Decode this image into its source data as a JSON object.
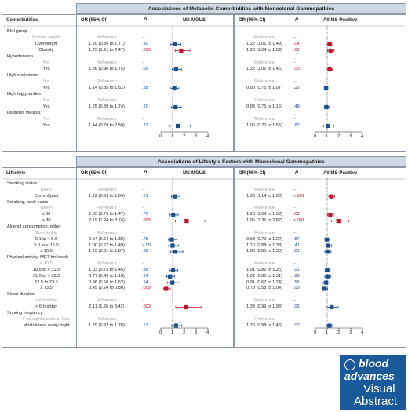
{
  "panel1": {
    "title": "Associations of Metabolic Comorbidities with Monoclonal Gammopathies",
    "first_col": "Comorbidities",
    "or_label": "OR (95% CI)",
    "p_label": "P",
    "plot_left": "MS-MGUS",
    "plot_right": "All MS-Positive",
    "axis_ticks": [
      "0",
      "1",
      "2",
      "3",
      "4"
    ],
    "rows": [
      {
        "label": "BMI group",
        "type": "cat",
        "or_l": "",
        "p_l": "",
        "or_r": "",
        "p_r": ""
      },
      {
        "label": "Normal weight",
        "type": "ref",
        "or_l": "Reference",
        "p_l": "--",
        "or_r": "Reference",
        "p_r": "--"
      },
      {
        "label": "Overweight",
        "type": "lvl",
        "or_l": "1.20 (0.85 to 1.71)",
        "p_l": ".30",
        "pc_l": "b",
        "or_r": "1.22 (1.01 to 1.49)",
        "p_r": ".04",
        "pc_r": "r"
      },
      {
        "label": "Obesity",
        "type": "lvl",
        "or_l": "1.73 (1.21 to 2.47)",
        "p_l": ".003",
        "pc_l": "r",
        "or_r": "1.28 (1.04 to 1.59)",
        "p_r": ".02",
        "pc_r": "r"
      },
      {
        "label": "Hypertension",
        "type": "cat",
        "or_l": "",
        "p_l": "",
        "or_r": "",
        "p_r": ""
      },
      {
        "label": "No",
        "type": "ref",
        "or_l": "Reference",
        "p_l": "--",
        "or_r": "Reference",
        "p_r": "--"
      },
      {
        "label": "Yes",
        "type": "lvl",
        "or_l": "1.30 (0.96 to 1.75)",
        "p_l": ".09",
        "pc_l": "b",
        "or_r": "1.22 (1.02 to 1.46)",
        "p_r": ".03",
        "pc_r": "r"
      },
      {
        "label": "High cholesterol",
        "type": "cat",
        "or_l": "",
        "p_l": "",
        "or_r": "",
        "p_r": ""
      },
      {
        "label": "No",
        "type": "ref",
        "or_l": "Reference",
        "p_l": "--",
        "or_r": "Reference",
        "p_r": "--"
      },
      {
        "label": "Yes",
        "type": "lvl",
        "or_l": "1.14 (0.85 to 1.52)",
        "p_l": ".38",
        "pc_l": "b",
        "or_r": "0.90 (0.75 to 1.07)",
        "p_r": ".22",
        "pc_r": "b"
      },
      {
        "label": "High triglycerides",
        "type": "cat",
        "or_l": "",
        "p_l": "",
        "or_r": "",
        "p_r": ""
      },
      {
        "label": "No",
        "type": "ref",
        "or_l": "Reference",
        "p_l": "--",
        "or_r": "Reference",
        "p_r": "--"
      },
      {
        "label": "Yes",
        "type": "lvl",
        "or_l": "1.25 (0.89 to 1.74)",
        "p_l": ".20",
        "pc_l": "b",
        "or_r": "0.93 (0.75 to 1.15)",
        "p_r": ".48",
        "pc_r": "b"
      },
      {
        "label": "Diabetes mellitus",
        "type": "cat",
        "or_l": "",
        "p_l": "",
        "or_r": "",
        "p_r": ""
      },
      {
        "label": "No",
        "type": "ref",
        "or_l": "Reference",
        "p_l": "--",
        "or_r": "Reference",
        "p_r": "--"
      },
      {
        "label": "Yes",
        "type": "lvl",
        "or_l": "1.44 (0.79 to 2.50)",
        "p_l": ".22",
        "pc_l": "b",
        "or_r": "1.05 (0.70 to 1.55)",
        "p_r": ".82",
        "pc_r": "b"
      }
    ]
  },
  "panel2": {
    "title": "Associations of Lifestyle Factors with Monoclonal Gammopathies",
    "first_col": "Lifestyle",
    "or_label": "OR (95% CI)",
    "p_label": "P",
    "plot_left": "MS-MGUS",
    "plot_right": "All MS-Positive",
    "axis_ticks": [
      "0",
      "1",
      "2",
      "3",
      "4"
    ],
    "rows": [
      {
        "label": "Smoking status",
        "type": "cat",
        "or_l": "",
        "p_l": "",
        "or_r": "",
        "p_r": ""
      },
      {
        "label": "Never",
        "type": "ref",
        "or_l": "Reference",
        "p_l": "--",
        "or_r": "Reference",
        "p_r": "--"
      },
      {
        "label": "Current/past",
        "type": "lvl",
        "or_l": "1.22 (0.89 to 1.64)",
        "p_l": ".21",
        "pc_l": "b",
        "or_r": "1.36 (1.14 to 1.63)",
        "p_r": "<.001",
        "pc_r": "r"
      },
      {
        "label": "Smoking, pack-years",
        "type": "cat",
        "or_l": "",
        "p_l": "",
        "or_r": "",
        "p_r": ""
      },
      {
        "label": "Never",
        "type": "ref",
        "or_l": "Reference",
        "p_l": "--",
        "or_r": "Reference",
        "p_r": "--"
      },
      {
        "label": "≤ 30",
        "type": "lvl",
        "or_l": "1.05 (0.75 to 1.47)",
        "p_l": ".76",
        "pc_l": "b",
        "or_r": "1.26 (1.04 to 1.53)",
        "p_r": ".02",
        "pc_r": "r"
      },
      {
        "label": "> 30",
        "type": "lvl",
        "or_l": "2.19 (1.24 to 3.74)",
        "p_l": ".005",
        "pc_l": "r",
        "or_r": "1.95 (1.36 to 2.82)",
        "p_r": "<.001",
        "pc_r": "r"
      },
      {
        "label": "Alcohol consumption, g/day",
        "type": "cat",
        "or_l": "",
        "p_l": "",
        "or_r": "",
        "p_r": ""
      },
      {
        "label": "Non-drinker",
        "type": "ref",
        "or_l": "Reference",
        "p_l": "--",
        "or_r": "Reference",
        "p_r": "--"
      },
      {
        "label": "0.1 to < 5.0",
        "type": "lvl",
        "or_l": "0.94 (0.64 to 1.38)",
        "p_l": ".75",
        "pc_l": "b",
        "or_r": "0.98 (0.79 to 1.22)",
        "p_r": ".87",
        "pc_r": "b"
      },
      {
        "label": "5.0 to < 15.0",
        "type": "lvl",
        "or_l": "1.00 (0.67 to 1.49)",
        "p_l": ">.99",
        "pc_l": "b",
        "or_r": "1.10 (0.88 to 1.38)",
        "p_r": ".41",
        "pc_r": "b"
      },
      {
        "label": "≥ 15.0",
        "type": "lvl",
        "or_l": "1.23 (0.81 to 1.87)",
        "p_l": ".32",
        "pc_l": "b",
        "or_r": "1.03 (0.80 to 1.33)",
        "p_r": ".81",
        "pc_r": "b"
      },
      {
        "label": "Physical activity, MET-hrs/week",
        "type": "cat",
        "or_l": "",
        "p_l": "",
        "or_r": "",
        "p_r": ""
      },
      {
        "label": "< 10.5",
        "type": "ref",
        "or_l": "Reference",
        "p_l": "--",
        "or_r": "Reference",
        "p_r": "--"
      },
      {
        "label": "10.5 to < 31.5",
        "type": "lvl",
        "or_l": "1.03 (0.73 to 1.45)",
        "p_l": ".88",
        "pc_l": "b",
        "or_r": "1.01 (0.82 to 1.25)",
        "p_r": ".91",
        "pc_r": "b"
      },
      {
        "label": "31.5 to < 52.5",
        "type": "lvl",
        "or_l": "0.77 (0.49 to 1.18)",
        "p_l": ".24",
        "pc_l": "b",
        "or_r": "1.02 (0.80 to 1.31)",
        "p_r": ".86",
        "pc_r": "b"
      },
      {
        "label": "52.5 to 73.5",
        "type": "lvl",
        "or_l": "0.98 (0.58 to 1.62)",
        "p_l": ".94",
        "pc_l": "b",
        "or_r": "0.91 (0.67 to 1.24)",
        "p_r": ".56",
        "pc_r": "b"
      },
      {
        "label": "≥ 73.5",
        "type": "lvl",
        "or_l": "0.45 (0.24 to 0.80)",
        "p_l": ".009",
        "pc_l": "r",
        "or_r": "0.78 (0.58 to 1.04)",
        "p_r": ".09",
        "pc_r": "b"
      },
      {
        "label": "Sleep duration",
        "type": "cat",
        "or_l": "",
        "p_l": "",
        "or_r": "",
        "p_r": ""
      },
      {
        "label": "≥ 6 hrs/day",
        "type": "ref",
        "or_l": "Reference",
        "p_l": "--",
        "or_r": "Reference",
        "p_r": "--"
      },
      {
        "label": "< 6 hrs/day",
        "type": "lvl",
        "or_l": "2.11 (1.26 to 3.42)",
        "p_l": ".003",
        "pc_l": "r",
        "or_r": "1.38 (0.99 to 1.93)",
        "p_r": ".06",
        "pc_r": "b"
      },
      {
        "label": "Snoring frequency",
        "type": "cat",
        "or_l": "",
        "p_l": "",
        "or_r": "",
        "p_r": ""
      },
      {
        "label": "Few nights/week or less",
        "type": "ref",
        "or_l": "Reference",
        "p_l": "--",
        "or_r": "Reference",
        "p_r": "--"
      },
      {
        "label": "Most/almost every night",
        "type": "lvl",
        "or_l": "1.29 (0.92 to 1.78)",
        "p_l": ".13",
        "pc_l": "b",
        "or_r": "1.20 (0.98 to 1.46)",
        "p_r": ".07",
        "pc_r": "b"
      }
    ]
  },
  "logo": {
    "line1": "blood",
    "line2": "advances",
    "line3": "Visual",
    "line4": "Abstract"
  },
  "colors": {
    "blue": "#1d4f8c",
    "red": "#c0142d",
    "header_bg": "#cfd8e3",
    "logo_bg": "#1a5a9a"
  }
}
